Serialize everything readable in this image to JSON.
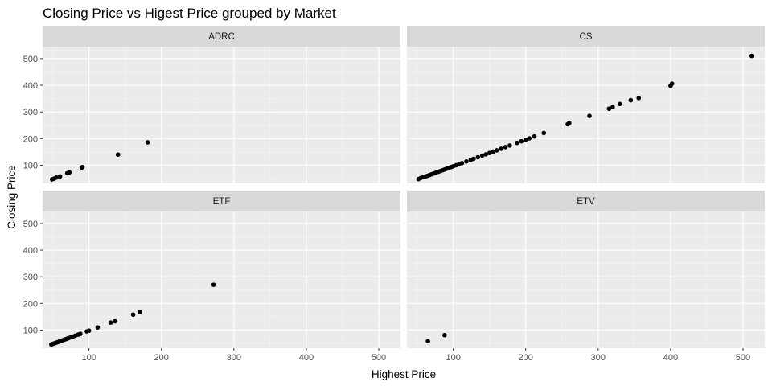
{
  "chart_data": {
    "type": "scatter",
    "title": "Closing Price  vs Higest Price grouped by Market",
    "xlabel": "Highest Price",
    "ylabel": "Closing Price",
    "xlim": [
      36,
      530
    ],
    "ylim": [
      32,
      545
    ],
    "xticks": [
      100,
      200,
      300,
      400,
      500
    ],
    "yticks": [
      100,
      200,
      300,
      400,
      500
    ],
    "grid": true,
    "facets": [
      {
        "label": "ADRC",
        "points": [
          {
            "x": 49,
            "y": 47
          },
          {
            "x": 52,
            "y": 50
          },
          {
            "x": 55,
            "y": 54
          },
          {
            "x": 60,
            "y": 58
          },
          {
            "x": 70,
            "y": 70
          },
          {
            "x": 73,
            "y": 73
          },
          {
            "x": 90,
            "y": 91
          },
          {
            "x": 91,
            "y": 93
          },
          {
            "x": 140,
            "y": 140
          },
          {
            "x": 181,
            "y": 186
          }
        ]
      },
      {
        "label": "CS",
        "points": [
          {
            "x": 52,
            "y": 48
          },
          {
            "x": 55,
            "y": 52
          },
          {
            "x": 58,
            "y": 55
          },
          {
            "x": 61,
            "y": 57
          },
          {
            "x": 64,
            "y": 60
          },
          {
            "x": 67,
            "y": 63
          },
          {
            "x": 70,
            "y": 66
          },
          {
            "x": 73,
            "y": 69
          },
          {
            "x": 76,
            "y": 72
          },
          {
            "x": 79,
            "y": 75
          },
          {
            "x": 82,
            "y": 78
          },
          {
            "x": 85,
            "y": 81
          },
          {
            "x": 88,
            "y": 84
          },
          {
            "x": 91,
            "y": 87
          },
          {
            "x": 94,
            "y": 90
          },
          {
            "x": 97,
            "y": 93
          },
          {
            "x": 100,
            "y": 96
          },
          {
            "x": 104,
            "y": 100
          },
          {
            "x": 108,
            "y": 104
          },
          {
            "x": 112,
            "y": 108
          },
          {
            "x": 118,
            "y": 114
          },
          {
            "x": 124,
            "y": 120
          },
          {
            "x": 128,
            "y": 124
          },
          {
            "x": 134,
            "y": 130
          },
          {
            "x": 140,
            "y": 136
          },
          {
            "x": 145,
            "y": 141
          },
          {
            "x": 150,
            "y": 146
          },
          {
            "x": 155,
            "y": 151
          },
          {
            "x": 160,
            "y": 156
          },
          {
            "x": 166,
            "y": 162
          },
          {
            "x": 172,
            "y": 168
          },
          {
            "x": 178,
            "y": 174
          },
          {
            "x": 188,
            "y": 184
          },
          {
            "x": 194,
            "y": 190
          },
          {
            "x": 200,
            "y": 196
          },
          {
            "x": 205,
            "y": 201
          },
          {
            "x": 212,
            "y": 208
          },
          {
            "x": 225,
            "y": 221
          },
          {
            "x": 258,
            "y": 254
          },
          {
            "x": 260,
            "y": 258
          },
          {
            "x": 288,
            "y": 285
          },
          {
            "x": 315,
            "y": 312
          },
          {
            "x": 320,
            "y": 318
          },
          {
            "x": 330,
            "y": 330
          },
          {
            "x": 345,
            "y": 344
          },
          {
            "x": 356,
            "y": 352
          },
          {
            "x": 400,
            "y": 398
          },
          {
            "x": 402,
            "y": 406
          },
          {
            "x": 512,
            "y": 510
          }
        ]
      },
      {
        "label": "ETF",
        "points": [
          {
            "x": 48,
            "y": 46
          },
          {
            "x": 50,
            "y": 48
          },
          {
            "x": 52,
            "y": 50
          },
          {
            "x": 54,
            "y": 52
          },
          {
            "x": 56,
            "y": 54
          },
          {
            "x": 58,
            "y": 56
          },
          {
            "x": 60,
            "y": 58
          },
          {
            "x": 62,
            "y": 60
          },
          {
            "x": 64,
            "y": 62
          },
          {
            "x": 66,
            "y": 64
          },
          {
            "x": 68,
            "y": 66
          },
          {
            "x": 70,
            "y": 68
          },
          {
            "x": 72,
            "y": 70
          },
          {
            "x": 75,
            "y": 73
          },
          {
            "x": 78,
            "y": 76
          },
          {
            "x": 81,
            "y": 79
          },
          {
            "x": 85,
            "y": 83
          },
          {
            "x": 88,
            "y": 86
          },
          {
            "x": 97,
            "y": 95
          },
          {
            "x": 100,
            "y": 98
          },
          {
            "x": 112,
            "y": 110
          },
          {
            "x": 130,
            "y": 128
          },
          {
            "x": 136,
            "y": 133
          },
          {
            "x": 161,
            "y": 158
          },
          {
            "x": 170,
            "y": 168
          },
          {
            "x": 272,
            "y": 270
          }
        ]
      },
      {
        "label": "ETV",
        "points": [
          {
            "x": 65,
            "y": 58
          },
          {
            "x": 88,
            "y": 81
          }
        ]
      }
    ]
  }
}
